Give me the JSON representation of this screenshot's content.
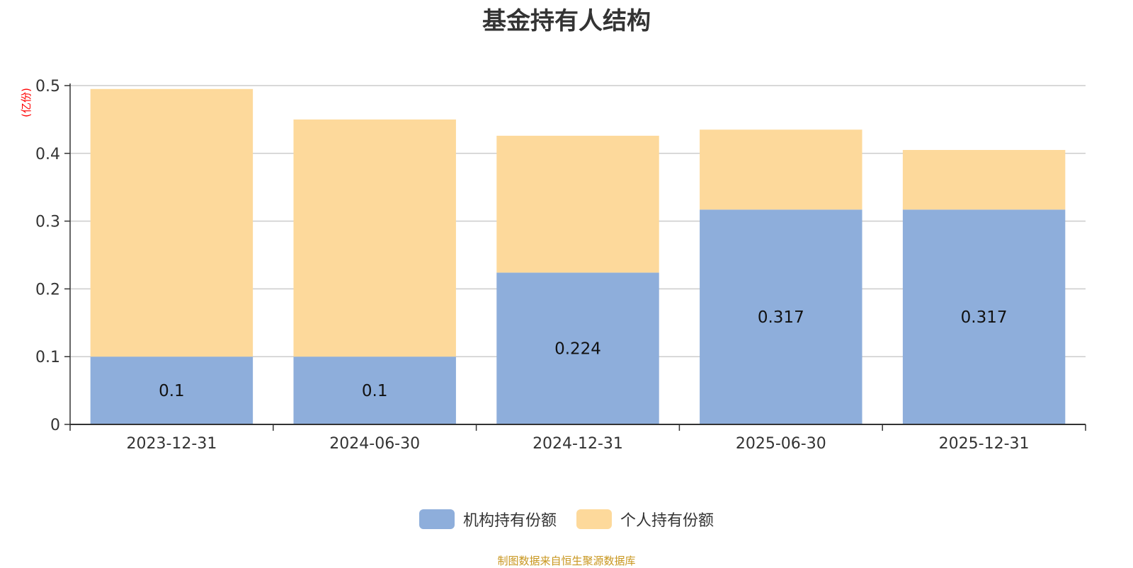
{
  "title": "基金持有人结构",
  "source": "制图数据来自恒生聚源数据库",
  "colors": {
    "institution": "#8eaedb",
    "individual": "#fdd99b",
    "unit_label": "#ff0000",
    "source": "#c8961e",
    "axis": "#333333",
    "grid": "#cccccc"
  },
  "chart_data": {
    "type": "bar",
    "stacked": true,
    "title": "基金持有人结构",
    "ylabel": "(亿份)",
    "ylim": [
      0,
      0.5
    ],
    "yticks": [
      "0",
      "0.1",
      "0.2",
      "0.3",
      "0.4",
      "0.5"
    ],
    "categories": [
      "2023-12-31",
      "2024-06-30",
      "2024-12-31",
      "2025-06-30",
      "2025-12-31"
    ],
    "series": [
      {
        "name": "机构持有份额",
        "values": [
          0.1,
          0.1,
          0.224,
          0.317,
          0.317
        ],
        "labels": [
          "0.1",
          "0.1",
          "0.224",
          "0.317",
          "0.317"
        ]
      },
      {
        "name": "个人持有份额",
        "values": [
          0.395,
          0.35,
          0.202,
          0.118,
          0.088
        ]
      }
    ],
    "legend_position": "bottom",
    "grid": true
  }
}
